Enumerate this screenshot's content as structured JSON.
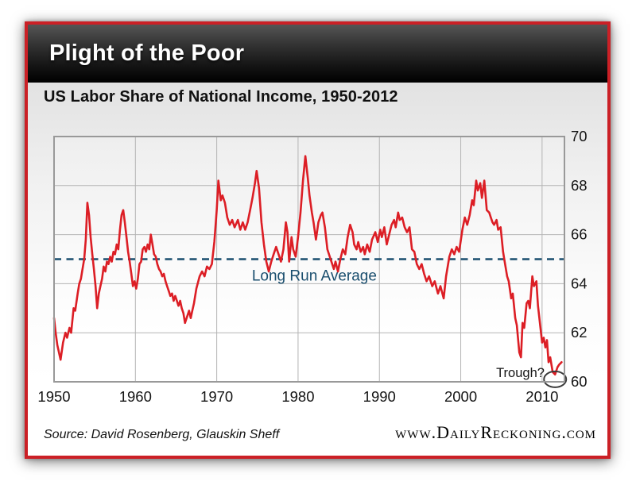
{
  "header": {
    "title": "Plight of the Poor"
  },
  "chart": {
    "subtitle": "US Labor Share of National Income, 1950-2012"
  },
  "footer": {
    "source": "Source: David Rosenberg, Glauskin Sheff",
    "website": "www.DailyReckoning.com"
  },
  "theme": {
    "card_border": "#cb2026",
    "header_text": "#ffffff",
    "grid": "#b4b4b4",
    "plot_border": "#999999",
    "tick_text": "#151515"
  },
  "chart_data": {
    "type": "line",
    "title": "US Labor Share of National Income, 1950-2012",
    "xlabel": "",
    "ylabel": "",
    "x_range": [
      1950,
      2012.75
    ],
    "y_range": [
      60,
      70
    ],
    "x_ticks": [
      1950,
      1960,
      1970,
      1980,
      1990,
      2000,
      2010
    ],
    "y_ticks": [
      60,
      62,
      64,
      66,
      68,
      70
    ],
    "y_axis_side": "right",
    "grid": true,
    "legend": "none",
    "reference_line": {
      "label": "Long Run Average",
      "value": 65,
      "color": "#1a4e6e",
      "style": "dashed",
      "label_x": 1982,
      "label_y": 64.35
    },
    "annotations": [
      {
        "type": "circled-point",
        "label": "Trough?",
        "x": 2011.6,
        "y": 60.1,
        "label_x": 2010.3,
        "label_y": 60.45
      }
    ],
    "series": [
      {
        "name": "US labor share of national income (%)",
        "color": "#dc1e25",
        "points": [
          [
            1950.0,
            62.6
          ],
          [
            1950.2,
            62.0
          ],
          [
            1950.4,
            61.5
          ],
          [
            1950.8,
            60.9
          ],
          [
            1951.1,
            61.6
          ],
          [
            1951.4,
            62.0
          ],
          [
            1951.6,
            61.8
          ],
          [
            1951.9,
            62.2
          ],
          [
            1952.1,
            62.0
          ],
          [
            1952.4,
            63.0
          ],
          [
            1952.6,
            62.9
          ],
          [
            1952.9,
            63.6
          ],
          [
            1953.1,
            64.0
          ],
          [
            1953.3,
            64.2
          ],
          [
            1953.5,
            64.6
          ],
          [
            1953.7,
            65.0
          ],
          [
            1953.9,
            65.8
          ],
          [
            1954.1,
            67.3
          ],
          [
            1954.3,
            66.8
          ],
          [
            1954.5,
            65.9
          ],
          [
            1954.7,
            65.2
          ],
          [
            1954.9,
            64.6
          ],
          [
            1955.1,
            63.9
          ],
          [
            1955.3,
            63.0
          ],
          [
            1955.5,
            63.6
          ],
          [
            1955.7,
            63.9
          ],
          [
            1955.9,
            64.2
          ],
          [
            1956.1,
            64.7
          ],
          [
            1956.3,
            64.5
          ],
          [
            1956.5,
            64.9
          ],
          [
            1956.7,
            64.8
          ],
          [
            1956.9,
            65.1
          ],
          [
            1957.1,
            64.9
          ],
          [
            1957.3,
            65.3
          ],
          [
            1957.5,
            65.2
          ],
          [
            1957.7,
            65.6
          ],
          [
            1957.9,
            65.4
          ],
          [
            1958.1,
            66.2
          ],
          [
            1958.3,
            66.8
          ],
          [
            1958.5,
            67.0
          ],
          [
            1958.7,
            66.5
          ],
          [
            1958.9,
            65.9
          ],
          [
            1959.1,
            65.3
          ],
          [
            1959.3,
            64.9
          ],
          [
            1959.5,
            64.4
          ],
          [
            1959.7,
            63.9
          ],
          [
            1959.9,
            64.1
          ],
          [
            1960.1,
            63.8
          ],
          [
            1960.3,
            64.2
          ],
          [
            1960.5,
            64.8
          ],
          [
            1960.7,
            64.9
          ],
          [
            1960.9,
            65.4
          ],
          [
            1961.1,
            65.5
          ],
          [
            1961.3,
            65.3
          ],
          [
            1961.5,
            65.6
          ],
          [
            1961.7,
            65.4
          ],
          [
            1961.9,
            66.0
          ],
          [
            1962.1,
            65.6
          ],
          [
            1962.3,
            65.2
          ],
          [
            1962.5,
            65.1
          ],
          [
            1962.7,
            64.8
          ],
          [
            1962.9,
            64.6
          ],
          [
            1963.1,
            64.5
          ],
          [
            1963.3,
            64.3
          ],
          [
            1963.5,
            64.4
          ],
          [
            1963.7,
            64.1
          ],
          [
            1963.9,
            63.9
          ],
          [
            1964.1,
            63.7
          ],
          [
            1964.3,
            63.5
          ],
          [
            1964.5,
            63.6
          ],
          [
            1964.7,
            63.3
          ],
          [
            1964.9,
            63.5
          ],
          [
            1965.1,
            63.3
          ],
          [
            1965.3,
            63.1
          ],
          [
            1965.5,
            63.3
          ],
          [
            1965.7,
            63.0
          ],
          [
            1965.9,
            62.8
          ],
          [
            1966.1,
            62.4
          ],
          [
            1966.4,
            62.7
          ],
          [
            1966.6,
            62.9
          ],
          [
            1966.8,
            62.6
          ],
          [
            1967.0,
            62.9
          ],
          [
            1967.2,
            63.2
          ],
          [
            1967.5,
            63.8
          ],
          [
            1967.9,
            64.3
          ],
          [
            1968.2,
            64.5
          ],
          [
            1968.5,
            64.3
          ],
          [
            1968.8,
            64.7
          ],
          [
            1969.1,
            64.6
          ],
          [
            1969.4,
            64.8
          ],
          [
            1969.7,
            65.7
          ],
          [
            1970.0,
            67.0
          ],
          [
            1970.2,
            68.2
          ],
          [
            1970.5,
            67.4
          ],
          [
            1970.7,
            67.6
          ],
          [
            1971.0,
            67.3
          ],
          [
            1971.3,
            66.7
          ],
          [
            1971.6,
            66.4
          ],
          [
            1971.9,
            66.6
          ],
          [
            1972.2,
            66.3
          ],
          [
            1972.6,
            66.6
          ],
          [
            1972.9,
            66.2
          ],
          [
            1973.2,
            66.5
          ],
          [
            1973.5,
            66.2
          ],
          [
            1973.8,
            66.5
          ],
          [
            1974.1,
            67.0
          ],
          [
            1974.4,
            67.5
          ],
          [
            1974.7,
            68.1
          ],
          [
            1974.9,
            68.6
          ],
          [
            1975.2,
            67.9
          ],
          [
            1975.5,
            66.5
          ],
          [
            1975.8,
            65.6
          ],
          [
            1976.1,
            64.9
          ],
          [
            1976.4,
            64.5
          ],
          [
            1976.7,
            64.9
          ],
          [
            1977.0,
            65.2
          ],
          [
            1977.3,
            65.5
          ],
          [
            1977.6,
            65.2
          ],
          [
            1977.9,
            64.9
          ],
          [
            1978.2,
            65.4
          ],
          [
            1978.5,
            66.5
          ],
          [
            1978.7,
            66.1
          ],
          [
            1978.9,
            64.9
          ],
          [
            1979.2,
            65.9
          ],
          [
            1979.4,
            65.4
          ],
          [
            1979.7,
            65.1
          ],
          [
            1980.0,
            65.9
          ],
          [
            1980.3,
            66.9
          ],
          [
            1980.6,
            68.2
          ],
          [
            1980.9,
            69.2
          ],
          [
            1981.2,
            68.3
          ],
          [
            1981.4,
            67.6
          ],
          [
            1981.7,
            66.9
          ],
          [
            1981.9,
            66.5
          ],
          [
            1982.2,
            65.8
          ],
          [
            1982.5,
            66.5
          ],
          [
            1982.8,
            66.8
          ],
          [
            1983.0,
            66.9
          ],
          [
            1983.3,
            66.3
          ],
          [
            1983.6,
            65.4
          ],
          [
            1983.9,
            65.1
          ],
          [
            1984.2,
            64.8
          ],
          [
            1984.4,
            64.6
          ],
          [
            1984.6,
            64.9
          ],
          [
            1984.9,
            64.5
          ],
          [
            1985.2,
            65.0
          ],
          [
            1985.5,
            65.4
          ],
          [
            1985.8,
            65.2
          ],
          [
            1986.1,
            65.9
          ],
          [
            1986.4,
            66.4
          ],
          [
            1986.7,
            66.1
          ],
          [
            1986.9,
            65.6
          ],
          [
            1987.2,
            65.4
          ],
          [
            1987.4,
            65.7
          ],
          [
            1987.7,
            65.3
          ],
          [
            1988.0,
            65.5
          ],
          [
            1988.2,
            65.2
          ],
          [
            1988.5,
            65.6
          ],
          [
            1988.8,
            65.3
          ],
          [
            1989.1,
            65.8
          ],
          [
            1989.5,
            66.1
          ],
          [
            1989.8,
            65.7
          ],
          [
            1990.1,
            66.2
          ],
          [
            1990.3,
            65.9
          ],
          [
            1990.6,
            66.3
          ],
          [
            1990.9,
            65.6
          ],
          [
            1991.2,
            66.0
          ],
          [
            1991.5,
            66.4
          ],
          [
            1991.8,
            66.6
          ],
          [
            1992.0,
            66.3
          ],
          [
            1992.3,
            66.9
          ],
          [
            1992.5,
            66.6
          ],
          [
            1992.8,
            66.7
          ],
          [
            1993.1,
            66.3
          ],
          [
            1993.4,
            66.1
          ],
          [
            1993.7,
            66.3
          ],
          [
            1994.0,
            65.4
          ],
          [
            1994.3,
            65.3
          ],
          [
            1994.6,
            64.8
          ],
          [
            1994.9,
            64.6
          ],
          [
            1995.2,
            64.8
          ],
          [
            1995.5,
            64.4
          ],
          [
            1995.8,
            64.1
          ],
          [
            1996.1,
            64.3
          ],
          [
            1996.5,
            63.9
          ],
          [
            1996.8,
            64.1
          ],
          [
            1997.2,
            63.6
          ],
          [
            1997.5,
            63.9
          ],
          [
            1997.9,
            63.4
          ],
          [
            1998.2,
            64.3
          ],
          [
            1998.6,
            65.1
          ],
          [
            1998.9,
            65.4
          ],
          [
            1999.2,
            65.2
          ],
          [
            1999.5,
            65.5
          ],
          [
            1999.8,
            65.3
          ],
          [
            2000.2,
            66.2
          ],
          [
            2000.5,
            66.7
          ],
          [
            2000.8,
            66.4
          ],
          [
            2001.1,
            66.8
          ],
          [
            2001.4,
            67.4
          ],
          [
            2001.6,
            67.2
          ],
          [
            2001.9,
            68.2
          ],
          [
            2002.1,
            67.8
          ],
          [
            2002.4,
            68.1
          ],
          [
            2002.6,
            67.5
          ],
          [
            2002.9,
            68.2
          ],
          [
            2003.2,
            67.0
          ],
          [
            2003.5,
            66.9
          ],
          [
            2003.7,
            66.7
          ],
          [
            2003.9,
            66.5
          ],
          [
            2004.1,
            66.4
          ],
          [
            2004.4,
            66.6
          ],
          [
            2004.6,
            66.2
          ],
          [
            2004.9,
            66.3
          ],
          [
            2005.2,
            65.3
          ],
          [
            2005.4,
            64.9
          ],
          [
            2005.7,
            64.3
          ],
          [
            2005.9,
            64.1
          ],
          [
            2006.2,
            63.4
          ],
          [
            2006.4,
            63.6
          ],
          [
            2006.7,
            62.6
          ],
          [
            2006.9,
            62.3
          ],
          [
            2007.2,
            61.2
          ],
          [
            2007.4,
            61.0
          ],
          [
            2007.6,
            62.4
          ],
          [
            2007.8,
            62.2
          ],
          [
            2008.1,
            63.2
          ],
          [
            2008.3,
            63.3
          ],
          [
            2008.5,
            63.0
          ],
          [
            2008.8,
            64.3
          ],
          [
            2009.0,
            63.9
          ],
          [
            2009.3,
            64.1
          ],
          [
            2009.5,
            63.1
          ],
          [
            2009.7,
            62.5
          ],
          [
            2010.0,
            61.6
          ],
          [
            2010.2,
            61.8
          ],
          [
            2010.4,
            61.4
          ],
          [
            2010.6,
            61.7
          ],
          [
            2010.8,
            60.8
          ],
          [
            2011.0,
            61.0
          ],
          [
            2011.3,
            60.4
          ],
          [
            2011.6,
            60.3
          ],
          [
            2011.9,
            60.6
          ],
          [
            2012.1,
            60.7
          ],
          [
            2012.4,
            60.8
          ]
        ]
      }
    ]
  }
}
